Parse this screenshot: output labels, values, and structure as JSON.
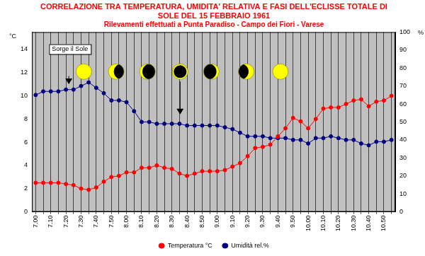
{
  "chart_data": {
    "type": "line",
    "title": [
      "CORRELAZIONE TRA TEMPERATURA, UMIDITA' RELATIVA E FASI DELL'ECLISSE TOTALE DI",
      "SOLE DEL 15 FEBBRAIO 1961"
    ],
    "subtitle": "Rilevamenti effettuati a Punta Paradiso - Campo dei Fiori - Varese",
    "y_label": "°C",
    "y2_label": "%",
    "annotations": [
      {
        "text": "Sorge il Sole"
      }
    ],
    "categories": [
      "7.00",
      null,
      "7.10",
      null,
      "7.20",
      null,
      "7.30",
      null,
      "7.40",
      null,
      "7.50",
      null,
      "8.00",
      null,
      "8.10",
      null,
      "8.20",
      null,
      "8.30",
      null,
      "8.40",
      null,
      "8.50",
      null,
      "9.00",
      null,
      "9.10",
      null,
      "9.20",
      null,
      "9.30",
      null,
      "9.40",
      null,
      "9.50",
      null,
      "10.00",
      null,
      "10.10",
      null,
      "10.20",
      null,
      "10.30",
      null,
      "10.40",
      null,
      "10.50",
      null
    ],
    "series": [
      {
        "name": "Temperatura °C",
        "color": "#ff0000",
        "marker": "circle",
        "line_style": "solid",
        "axis": "y",
        "values": [
          2.5,
          2.5,
          2.5,
          2.5,
          2.4,
          2.3,
          2.0,
          1.9,
          2.1,
          2.6,
          3.0,
          3.1,
          3.4,
          3.4,
          3.8,
          3.8,
          4.0,
          3.8,
          3.7,
          3.3,
          3.1,
          3.3,
          3.5,
          3.5,
          3.5,
          3.6,
          3.9,
          4.2,
          4.8,
          5.5,
          5.6,
          5.8,
          6.5,
          7.2,
          8.1,
          7.8,
          7.2,
          8.0,
          8.9,
          9.0,
          9.0,
          9.3,
          9.6,
          9.7,
          9.1,
          9.5,
          9.6,
          10.0
        ]
      },
      {
        "name": "Umidità rel.%",
        "color": "#000080",
        "marker": "circle",
        "line_style": "solid",
        "axis": "y2",
        "values": [
          65,
          67,
          67,
          67,
          68,
          68,
          70,
          72,
          69,
          66,
          62,
          62,
          61,
          56,
          50,
          50,
          49,
          49,
          49,
          49,
          48,
          48,
          48,
          48,
          48,
          47,
          46,
          44,
          42,
          42,
          42,
          41,
          41,
          41,
          40,
          40,
          38,
          41,
          41,
          42,
          41,
          40,
          40,
          38,
          37,
          39,
          39,
          40
        ]
      }
    ],
    "ylim": [
      0,
      15.5
    ],
    "yticks": [
      0,
      2,
      4,
      6,
      8,
      10,
      12,
      14
    ],
    "y2lim": [
      0,
      100
    ],
    "y2ticks": [
      0,
      10,
      20,
      30,
      40,
      50,
      60,
      70,
      80,
      90,
      100
    ],
    "grid": true,
    "legend": "bottom"
  }
}
